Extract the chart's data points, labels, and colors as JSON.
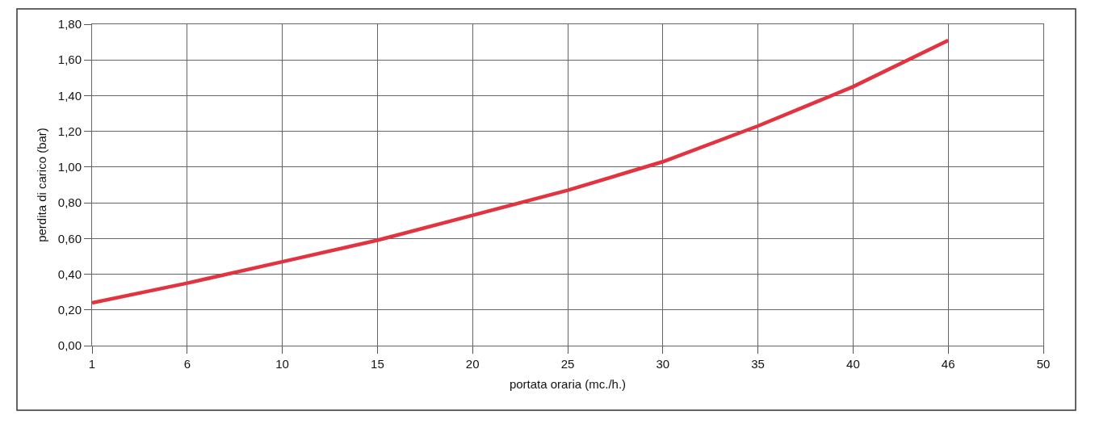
{
  "chart_data": {
    "type": "line",
    "xlabel": "portata oraria (mc./h.)",
    "ylabel": "perdita di carico (bar)",
    "categories": [
      "1",
      "6",
      "10",
      "15",
      "20",
      "25",
      "30",
      "35",
      "40",
      "46",
      "50"
    ],
    "series": [
      {
        "color": "#e23440",
        "values": [
          0.24,
          0.35,
          0.47,
          0.59,
          0.73,
          0.87,
          1.03,
          1.23,
          1.45,
          1.71,
          null
        ]
      }
    ],
    "ylim": [
      0,
      1.8
    ],
    "yticks": [
      {
        "value": 0,
        "label": "0,00"
      },
      {
        "value": 0.2,
        "label": "0,20"
      },
      {
        "value": 0.4,
        "label": "0,40"
      },
      {
        "value": 0.6,
        "label": "0,60"
      },
      {
        "value": 0.8,
        "label": "0,80"
      },
      {
        "value": 1,
        "label": "1,00"
      },
      {
        "value": 1.2,
        "label": "1,20"
      },
      {
        "value": 1.4,
        "label": "1,40"
      },
      {
        "value": 1.6,
        "label": "1,60"
      },
      {
        "value": 1.8,
        "label": "1,80"
      }
    ],
    "grid": true,
    "marker": "none",
    "line_style": "solid"
  }
}
